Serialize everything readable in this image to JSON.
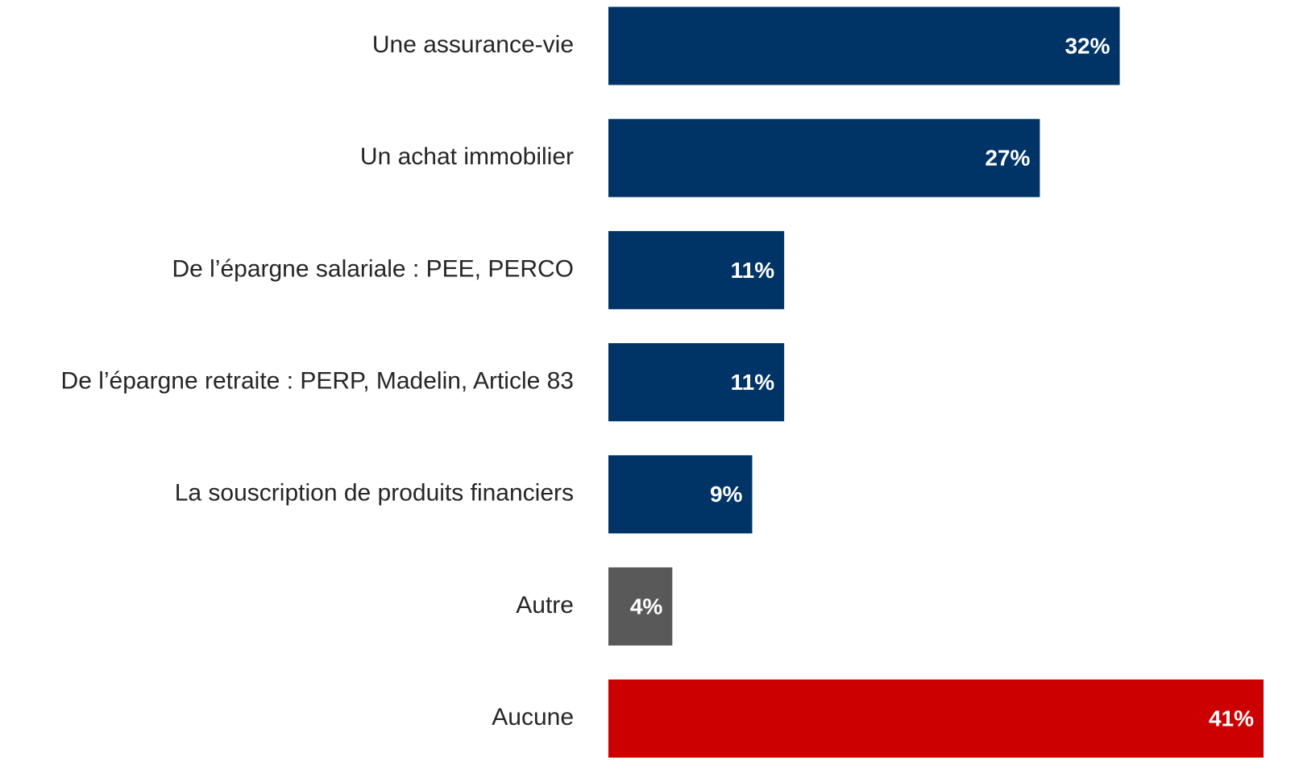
{
  "chart_data": {
    "type": "bar",
    "orientation": "horizontal",
    "categories": [
      "Une assurance-vie",
      "Un achat immobilier",
      "De l’épargne salariale : PEE, PERCO",
      "De l’épargne retraite : PERP, Madelin, Article 83",
      "La souscription de produits financiers",
      "Autre",
      "Aucune"
    ],
    "values": [
      32,
      27,
      11,
      11,
      9,
      4,
      41
    ],
    "value_labels": [
      "32%",
      "27%",
      "11%",
      "11%",
      "9%",
      "4%",
      "41%"
    ],
    "colors": [
      "#003366",
      "#003366",
      "#003366",
      "#003366",
      "#003366",
      "#595959",
      "#cc0000"
    ],
    "xlim": [
      0,
      41
    ]
  }
}
